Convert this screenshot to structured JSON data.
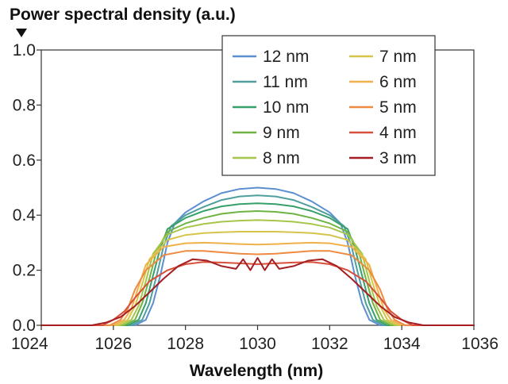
{
  "chart_data": {
    "type": "line",
    "ylabel": "Power spectral density (a.u.)",
    "xlabel": "Wavelength (nm)",
    "xlim": [
      1024,
      1036
    ],
    "ylim": [
      0,
      1.0
    ],
    "xticks": [
      "1024",
      "1026",
      "1028",
      "1030",
      "1032",
      "1034",
      "1036"
    ],
    "yticks": [
      "0.0",
      "0.2",
      "0.4",
      "0.6",
      "0.8",
      "1.0"
    ],
    "grid": false,
    "legend_position": "top-right",
    "legend_columns": 2,
    "series": [
      {
        "name": "12 nm",
        "color": "#5b8fd0",
        "x": [
          1024,
          1026.6,
          1026.9,
          1027.1,
          1027.3,
          1027.5,
          1027.7,
          1028.0,
          1028.5,
          1029.0,
          1029.5,
          1030.0,
          1030.5,
          1031.0,
          1031.5,
          1032.0,
          1032.3,
          1032.5,
          1032.7,
          1032.9,
          1033.1,
          1033.4,
          1036
        ],
        "y": [
          0.0,
          0.0,
          0.02,
          0.08,
          0.18,
          0.3,
          0.37,
          0.41,
          0.45,
          0.48,
          0.495,
          0.5,
          0.495,
          0.48,
          0.45,
          0.41,
          0.37,
          0.3,
          0.18,
          0.08,
          0.02,
          0.0,
          0.0
        ]
      },
      {
        "name": "11 nm",
        "color": "#4e9f9e",
        "x": [
          1024,
          1026.5,
          1026.8,
          1027.0,
          1027.2,
          1027.4,
          1027.6,
          1028.0,
          1028.5,
          1029.0,
          1029.5,
          1030.0,
          1030.5,
          1031.0,
          1031.5,
          1032.0,
          1032.4,
          1032.6,
          1032.8,
          1033.0,
          1033.2,
          1033.5,
          1036
        ],
        "y": [
          0.0,
          0.0,
          0.02,
          0.08,
          0.18,
          0.29,
          0.36,
          0.4,
          0.43,
          0.455,
          0.468,
          0.472,
          0.468,
          0.455,
          0.43,
          0.4,
          0.36,
          0.29,
          0.18,
          0.08,
          0.02,
          0.0,
          0.0
        ]
      },
      {
        "name": "10 nm",
        "color": "#36a06a",
        "x": [
          1024,
          1026.4,
          1026.7,
          1026.9,
          1027.1,
          1027.3,
          1027.5,
          1028.0,
          1028.5,
          1029.0,
          1029.5,
          1030.0,
          1030.5,
          1031.0,
          1031.5,
          1032.0,
          1032.5,
          1032.7,
          1032.9,
          1033.1,
          1033.3,
          1033.6,
          1036
        ],
        "y": [
          0.0,
          0.0,
          0.02,
          0.08,
          0.18,
          0.28,
          0.35,
          0.39,
          0.415,
          0.432,
          0.44,
          0.443,
          0.44,
          0.432,
          0.415,
          0.39,
          0.35,
          0.28,
          0.18,
          0.08,
          0.02,
          0.0,
          0.0
        ]
      },
      {
        "name": "9 nm",
        "color": "#6fb443",
        "x": [
          1024,
          1026.3,
          1026.6,
          1026.8,
          1027.0,
          1027.2,
          1027.5,
          1028.0,
          1028.5,
          1029.0,
          1029.5,
          1030.0,
          1030.5,
          1031.0,
          1031.5,
          1032.0,
          1032.5,
          1032.8,
          1033.0,
          1033.2,
          1033.4,
          1033.7,
          1036
        ],
        "y": [
          0.0,
          0.0,
          0.02,
          0.08,
          0.17,
          0.27,
          0.34,
          0.37,
          0.39,
          0.405,
          0.412,
          0.415,
          0.412,
          0.405,
          0.39,
          0.37,
          0.34,
          0.27,
          0.17,
          0.08,
          0.02,
          0.0,
          0.0
        ]
      },
      {
        "name": "8 nm",
        "color": "#a6c64a",
        "x": [
          1024,
          1026.2,
          1026.5,
          1026.7,
          1026.9,
          1027.1,
          1027.5,
          1028.0,
          1028.5,
          1029.0,
          1029.5,
          1030.0,
          1030.5,
          1031.0,
          1031.5,
          1032.0,
          1032.5,
          1032.9,
          1033.1,
          1033.3,
          1033.5,
          1033.8,
          1036
        ],
        "y": [
          0.0,
          0.0,
          0.02,
          0.07,
          0.16,
          0.26,
          0.33,
          0.355,
          0.368,
          0.376,
          0.38,
          0.382,
          0.38,
          0.376,
          0.368,
          0.355,
          0.33,
          0.26,
          0.16,
          0.07,
          0.02,
          0.0,
          0.0
        ]
      },
      {
        "name": "7 nm",
        "color": "#d6c44a",
        "x": [
          1024,
          1026.1,
          1026.4,
          1026.6,
          1026.8,
          1027.0,
          1027.5,
          1028.0,
          1028.5,
          1029.0,
          1029.5,
          1030.0,
          1030.5,
          1031.0,
          1031.5,
          1032.0,
          1032.5,
          1033.0,
          1033.2,
          1033.4,
          1033.6,
          1033.9,
          1036
        ],
        "y": [
          0.0,
          0.0,
          0.02,
          0.07,
          0.15,
          0.24,
          0.31,
          0.328,
          0.335,
          0.338,
          0.34,
          0.34,
          0.34,
          0.338,
          0.335,
          0.328,
          0.31,
          0.24,
          0.15,
          0.07,
          0.02,
          0.0,
          0.0
        ]
      },
      {
        "name": "6 nm",
        "color": "#f0b04a",
        "x": [
          1024,
          1026.0,
          1026.3,
          1026.5,
          1026.7,
          1026.9,
          1027.4,
          1028.0,
          1028.5,
          1029.0,
          1029.5,
          1030.0,
          1030.5,
          1031.0,
          1031.5,
          1032.0,
          1032.6,
          1033.1,
          1033.3,
          1033.5,
          1033.7,
          1034.0,
          1036
        ],
        "y": [
          0.0,
          0.0,
          0.02,
          0.06,
          0.14,
          0.22,
          0.285,
          0.298,
          0.3,
          0.298,
          0.295,
          0.293,
          0.295,
          0.298,
          0.3,
          0.298,
          0.285,
          0.22,
          0.14,
          0.06,
          0.02,
          0.0,
          0.0
        ]
      },
      {
        "name": "5 nm",
        "color": "#ee8a42",
        "x": [
          1024,
          1025.9,
          1026.2,
          1026.4,
          1026.6,
          1026.9,
          1027.4,
          1028.0,
          1028.5,
          1029.0,
          1029.5,
          1030.0,
          1030.5,
          1031.0,
          1031.5,
          1032.0,
          1032.6,
          1033.1,
          1033.4,
          1033.6,
          1033.8,
          1034.1,
          1036
        ],
        "y": [
          0.0,
          0.0,
          0.02,
          0.06,
          0.13,
          0.2,
          0.255,
          0.27,
          0.27,
          0.265,
          0.26,
          0.258,
          0.26,
          0.265,
          0.27,
          0.27,
          0.255,
          0.2,
          0.13,
          0.06,
          0.02,
          0.0,
          0.0
        ]
      },
      {
        "name": "4 nm",
        "color": "#d8503a",
        "x": [
          1024,
          1025.7,
          1026.0,
          1026.3,
          1026.6,
          1027.0,
          1027.5,
          1028.0,
          1028.5,
          1029.0,
          1029.5,
          1030.0,
          1030.5,
          1031.0,
          1031.5,
          1032.0,
          1032.5,
          1033.0,
          1033.4,
          1033.7,
          1034.0,
          1034.3,
          1036
        ],
        "y": [
          0.0,
          0.0,
          0.02,
          0.05,
          0.1,
          0.16,
          0.2,
          0.222,
          0.23,
          0.228,
          0.225,
          0.222,
          0.225,
          0.228,
          0.23,
          0.222,
          0.2,
          0.16,
          0.1,
          0.05,
          0.02,
          0.0,
          0.0
        ]
      },
      {
        "name": "3 nm",
        "color": "#a41e22",
        "x": [
          1024,
          1025.4,
          1025.8,
          1026.2,
          1026.6,
          1027.0,
          1027.4,
          1027.8,
          1028.2,
          1028.6,
          1029.0,
          1029.4,
          1029.6,
          1029.8,
          1030.0,
          1030.2,
          1030.4,
          1030.6,
          1031.0,
          1031.4,
          1031.8,
          1032.2,
          1032.6,
          1033.0,
          1033.4,
          1033.8,
          1034.2,
          1034.6,
          1036
        ],
        "y": [
          0.0,
          0.0,
          0.01,
          0.03,
          0.07,
          0.12,
          0.17,
          0.215,
          0.24,
          0.235,
          0.215,
          0.205,
          0.24,
          0.2,
          0.245,
          0.2,
          0.24,
          0.205,
          0.215,
          0.235,
          0.24,
          0.215,
          0.17,
          0.12,
          0.07,
          0.03,
          0.01,
          0.0,
          0.0
        ]
      }
    ]
  }
}
